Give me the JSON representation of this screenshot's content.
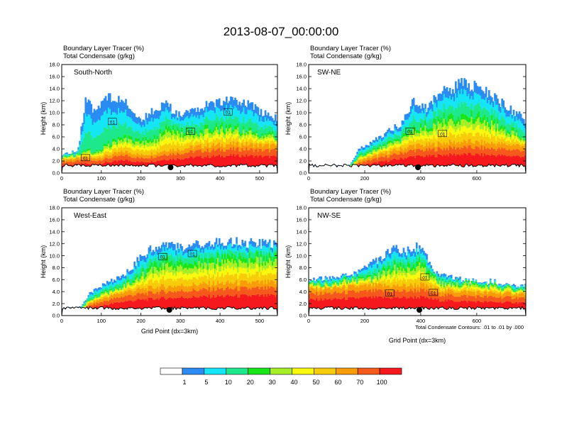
{
  "title": "2013-08-07_00:00:00",
  "header_line1": "Boundary Layer Tracer   (%)",
  "header_line2": "Total Condensate   (g/kg)",
  "ylabel": "Height (km)",
  "xlabel": "Grid Point (dx=3km)",
  "contour_note": "Total Condensate Contours: .01 to .01 by .000",
  "colors": {
    "levels": [
      "#ffffff",
      "#2a8cf2",
      "#14e6f5",
      "#1ee88c",
      "#19e619",
      "#a6ee28",
      "#f9f90f",
      "#f7cc0b",
      "#f89c0a",
      "#f5591b",
      "#f5191e"
    ],
    "marker": "#000000"
  },
  "colorbar": {
    "labels": [
      "1",
      "5",
      "10",
      "20",
      "30",
      "40",
      "50",
      "60",
      "70",
      "100"
    ]
  },
  "chart_data": [
    {
      "type": "heatmap",
      "name": "South-North",
      "xticks": [
        "0",
        "100",
        "200",
        "300",
        "400",
        "500"
      ],
      "yticks": [
        "0.0",
        "2.0",
        "4.0",
        "6.0",
        "8.0",
        "10.0",
        "12.0",
        "14.0",
        "16.0",
        "18.0"
      ],
      "xlim": [
        0,
        545
      ],
      "ylim": [
        0,
        18
      ],
      "marker_x": 275,
      "contour_labels": [
        {
          "text": "01",
          "x": 60,
          "y": 2.5
        },
        {
          "text": "01",
          "x": 128,
          "y": 8.5
        },
        {
          "text": "01",
          "x": 325,
          "y": 6.9
        },
        {
          "text": "01",
          "x": 420,
          "y": 10.1
        }
      ],
      "profile": [
        [
          0,
          2.2,
          2.8,
          3.2
        ],
        [
          40,
          2.4,
          3.0,
          3.6
        ],
        [
          60,
          2.6,
          4.0,
          12.0
        ],
        [
          80,
          2.4,
          3.5,
          11.0
        ],
        [
          120,
          3.0,
          5.0,
          13.0
        ],
        [
          160,
          3.6,
          6.0,
          12.0
        ],
        [
          200,
          3.0,
          5.5,
          9.0
        ],
        [
          240,
          3.4,
          6.0,
          11.0
        ],
        [
          260,
          3.8,
          7.5,
          12.0
        ],
        [
          300,
          4.0,
          6.8,
          9.5
        ],
        [
          340,
          4.4,
          7.0,
          11.0
        ],
        [
          380,
          4.6,
          7.5,
          12.0
        ],
        [
          420,
          4.8,
          7.6,
          12.5
        ],
        [
          470,
          4.8,
          7.2,
          11.8
        ],
        [
          500,
          4.6,
          6.6,
          10.5
        ],
        [
          545,
          4.5,
          6.0,
          9.5
        ]
      ]
    },
    {
      "type": "heatmap",
      "name": "SW-NE",
      "xticks": [
        "0",
        "200",
        "400",
        "600"
      ],
      "yticks": [
        "0.0",
        "2.0",
        "4.0",
        "6.0",
        "8.0",
        "10.0",
        "12.0",
        "14.0",
        "16.0",
        "18.0"
      ],
      "xlim": [
        0,
        775
      ],
      "ylim": [
        0,
        18
      ],
      "marker_x": 390,
      "contour_labels": [
        {
          "text": "01",
          "x": 362,
          "y": 6.9
        },
        {
          "text": "01",
          "x": 478,
          "y": 6.5
        }
      ],
      "profile": [
        [
          0,
          0.5,
          0.6,
          0.7
        ],
        [
          140,
          0.5,
          0.7,
          0.8
        ],
        [
          180,
          2.0,
          2.8,
          4.0
        ],
        [
          250,
          3.0,
          4.2,
          6.0
        ],
        [
          330,
          4.0,
          5.8,
          8.5
        ],
        [
          370,
          4.6,
          7.0,
          12.0
        ],
        [
          420,
          4.6,
          8.0,
          11.0
        ],
        [
          480,
          5.0,
          9.0,
          14.0
        ],
        [
          560,
          5.2,
          9.5,
          15.3
        ],
        [
          640,
          5.0,
          9.0,
          13.5
        ],
        [
          700,
          4.8,
          7.5,
          11.5
        ],
        [
          775,
          4.6,
          6.0,
          9.0
        ]
      ]
    },
    {
      "type": "heatmap",
      "name": "West-East",
      "xticks": [
        "0",
        "100",
        "200",
        "300",
        "400",
        "500"
      ],
      "yticks": [
        "0.0",
        "2.0",
        "4.0",
        "6.0",
        "8.0",
        "10.0",
        "12.0",
        "14.0",
        "16.0",
        "18.0"
      ],
      "xlim": [
        0,
        545
      ],
      "ylim": [
        0,
        18
      ],
      "marker_x": 272,
      "contour_labels": [
        {
          "text": "01",
          "x": 255,
          "y": 9.8
        },
        {
          "text": "01",
          "x": 330,
          "y": 10.3
        }
      ],
      "profile": [
        [
          0,
          0.5,
          0.6,
          0.7
        ],
        [
          45,
          0.6,
          0.8,
          1.0
        ],
        [
          70,
          2.0,
          2.8,
          3.8
        ],
        [
          110,
          3.0,
          4.0,
          5.5
        ],
        [
          160,
          4.0,
          5.2,
          7.0
        ],
        [
          200,
          4.4,
          7.0,
          10.0
        ],
        [
          250,
          4.8,
          9.0,
          12.5
        ],
        [
          300,
          5.0,
          8.5,
          11.5
        ],
        [
          340,
          5.2,
          9.0,
          12.0
        ],
        [
          400,
          5.4,
          9.5,
          12.5
        ],
        [
          480,
          5.5,
          9.8,
          12.5
        ],
        [
          545,
          5.5,
          9.5,
          12.0
        ]
      ]
    },
    {
      "type": "heatmap",
      "name": "NW-SE",
      "xticks": [
        "0",
        "200",
        "400",
        "600"
      ],
      "yticks": [
        "0.0",
        "2.0",
        "4.0",
        "6.0",
        "8.0",
        "10.0",
        "12.0",
        "14.0",
        "16.0",
        "18.0"
      ],
      "xlim": [
        0,
        775
      ],
      "ylim": [
        0,
        18
      ],
      "marker_x": 395,
      "contour_labels": [
        {
          "text": "01",
          "x": 290,
          "y": 3.7
        },
        {
          "text": "01",
          "x": 415,
          "y": 6.4
        },
        {
          "text": "01",
          "x": 445,
          "y": 3.8
        }
      ],
      "profile": [
        [
          0,
          4.4,
          5.2,
          6.0
        ],
        [
          100,
          4.6,
          5.6,
          6.6
        ],
        [
          160,
          4.8,
          6.0,
          7.0
        ],
        [
          230,
          5.0,
          6.5,
          9.0
        ],
        [
          300,
          5.0,
          8.5,
          11.5
        ],
        [
          350,
          5.0,
          8.0,
          11.0
        ],
        [
          400,
          5.2,
          9.0,
          12.0
        ],
        [
          440,
          4.6,
          6.5,
          8.0
        ],
        [
          480,
          4.2,
          5.5,
          7.0
        ],
        [
          560,
          4.0,
          5.5,
          6.0
        ],
        [
          640,
          3.8,
          5.0,
          5.5
        ],
        [
          775,
          3.6,
          4.4,
          5.0
        ]
      ]
    }
  ]
}
